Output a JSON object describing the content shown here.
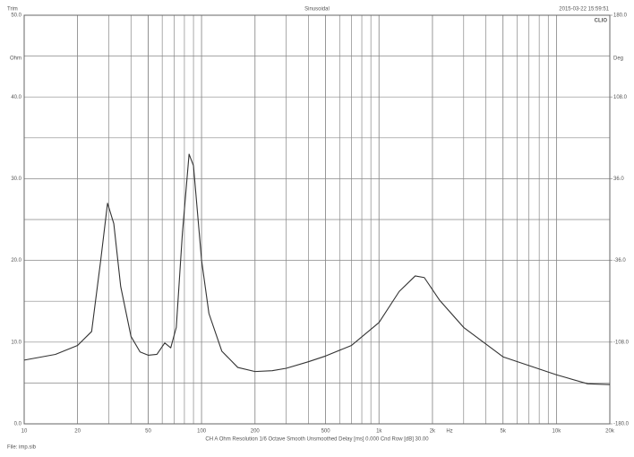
{
  "chart_data": {
    "type": "line",
    "header_left": "Trim",
    "title": "Sinusoidal",
    "timestamp": "2015-03-22 15:59:51",
    "brand": "CLIO",
    "y_unit": "Ohm",
    "y2_unit": "Deg",
    "x_unit": "Hz",
    "footer": "CH A   Ohm   Resolution 1/6 Octave   Smooth Unsmoothed   Delay [ms] 0.000   Cnd Row [dB] 30.00",
    "file": "File: imp.sib",
    "xscale": "log",
    "xlim": [
      10,
      20000
    ],
    "xticks": [
      10,
      20,
      50,
      100,
      200,
      500,
      {
        "value": 1000,
        "label": "1k"
      },
      {
        "value": 2000,
        "label": "2k"
      },
      {
        "value": 5000,
        "label": "5k"
      },
      {
        "value": 10000,
        "label": "10k"
      },
      {
        "value": 20000,
        "label": "20k"
      }
    ],
    "ylim": [
      0,
      50
    ],
    "yticks": [
      {
        "value": 0,
        "label": "0.0"
      },
      {
        "value": 10,
        "label": "10.0"
      },
      {
        "value": 20,
        "label": "20.0"
      },
      {
        "value": 30,
        "label": "30.0"
      },
      {
        "value": 40,
        "label": "40.0"
      },
      {
        "value": 50,
        "label": "50.0"
      }
    ],
    "y2lim": [
      -180,
      180
    ],
    "y2ticks": [
      {
        "value": -180,
        "label": "-180.0"
      },
      {
        "value": -108,
        "label": "-108.0"
      },
      {
        "value": -36,
        "label": "-36.0"
      },
      {
        "value": 36,
        "label": "36.0"
      },
      {
        "value": 108,
        "label": "108.0"
      },
      {
        "value": 180,
        "label": "180.0"
      }
    ],
    "grid": true,
    "x": [
      10,
      15,
      20,
      24,
      27,
      29.5,
      32,
      35,
      40,
      45,
      50,
      56,
      62,
      67,
      72,
      78,
      85,
      90,
      100,
      110,
      130,
      160,
      200,
      250,
      300,
      400,
      500,
      700,
      1000,
      1300,
      1600,
      1800,
      2200,
      3000,
      5000,
      10000,
      15000,
      20000
    ],
    "series": [
      {
        "color": "#333333",
        "values": [
          7.8,
          8.5,
          9.6,
          11.3,
          20,
          27,
          24.5,
          16.8,
          10.7,
          8.8,
          8.4,
          8.5,
          9.9,
          9.3,
          11.8,
          23.4,
          33,
          31.6,
          20,
          13.5,
          8.9,
          6.9,
          6.4,
          6.5,
          6.8,
          7.6,
          8.3,
          9.6,
          12.4,
          16.2,
          18.1,
          17.9,
          15.1,
          11.8,
          8.2,
          6.0,
          4.9,
          4.8
        ]
      }
    ]
  }
}
